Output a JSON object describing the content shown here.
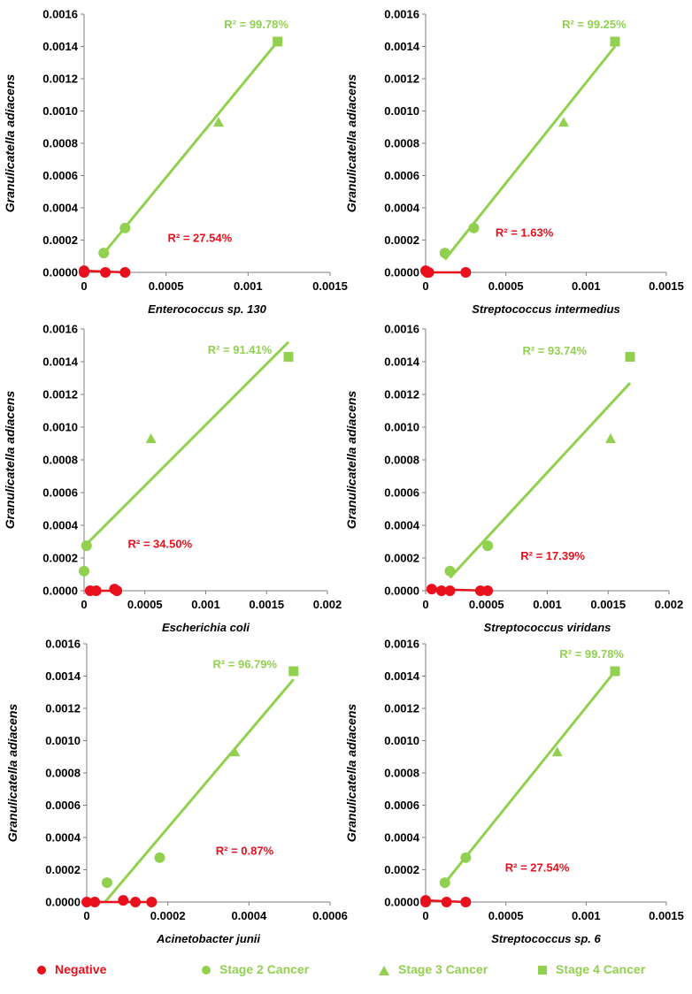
{
  "colors": {
    "negative": "#e8101c",
    "cancer": "#92d050"
  },
  "legend": [
    {
      "label": "Negative",
      "marker": "circle",
      "color": "#e8101c"
    },
    {
      "label": "Stage 2 Cancer",
      "marker": "circle",
      "color": "#92d050"
    },
    {
      "label": "Stage 3 Cancer",
      "marker": "triangle",
      "color": "#92d050"
    },
    {
      "label": "Stage 4 Cancer",
      "marker": "square",
      "color": "#92d050"
    }
  ],
  "chart_data": [
    {
      "type": "scatter",
      "xlabel": "Enterococcus sp. 130",
      "ylabel": "Granulicatella adiacens",
      "xlim": [
        0,
        0.0015
      ],
      "xticks": [
        0,
        0.0005,
        0.001,
        0.0015
      ],
      "xtick_labels": [
        "0",
        "0.0005",
        "0.001",
        "0.0015"
      ],
      "ylim": [
        0,
        0.0016
      ],
      "yticks": [
        0,
        0.0002,
        0.0004,
        0.0006,
        0.0008,
        0.001,
        0.0012,
        0.0014,
        0.0016
      ],
      "ytick_labels": [
        "0.0000",
        "0.0002",
        "0.0004",
        "0.0006",
        "0.0008",
        "0.0010",
        "0.0012",
        "0.0014",
        "0.0016"
      ],
      "negative": {
        "points": [
          [
            0,
            1e-05
          ],
          [
            0,
            0
          ],
          [
            0.00013,
            0
          ],
          [
            0.00025,
            0
          ]
        ],
        "trend": [
          [
            0,
            1e-05
          ],
          [
            0.00025,
            0
          ]
        ],
        "r2": "R² = 27.54%"
      },
      "cancer": {
        "stage2": [
          [
            0.00012,
            0.00012
          ],
          [
            0.00025,
            0.000275
          ]
        ],
        "stage3": [
          [
            0.00082,
            0.00093
          ]
        ],
        "stage4": [
          [
            0.00118,
            0.00143
          ]
        ],
        "trend": [
          [
            0.00012,
            0.000118
          ],
          [
            0.00118,
            0.00143
          ]
        ],
        "r2": "R² = 99.78%"
      }
    },
    {
      "type": "scatter",
      "xlabel": "Streptococcus intermedius",
      "ylabel": "Granulicatella adiacens",
      "xlim": [
        0,
        0.0015
      ],
      "xticks": [
        0,
        0.0005,
        0.001,
        0.0015
      ],
      "xtick_labels": [
        "0",
        "0.0005",
        "0.001",
        "0.0015"
      ],
      "ylim": [
        0,
        0.0016
      ],
      "yticks": [
        0,
        0.0002,
        0.0004,
        0.0006,
        0.0008,
        0.001,
        0.0012,
        0.0014,
        0.0016
      ],
      "ytick_labels": [
        "0.0000",
        "0.0002",
        "0.0004",
        "0.0006",
        "0.0008",
        "0.0010",
        "0.0012",
        "0.0014",
        "0.0016"
      ],
      "negative": {
        "points": [
          [
            0,
            1e-05
          ],
          [
            2e-05,
            0
          ],
          [
            1e-05,
            0
          ],
          [
            0.00025,
            0
          ]
        ],
        "trend": [
          [
            0,
            0
          ],
          [
            0.00025,
            0
          ]
        ],
        "r2": "R² = 1.63%"
      },
      "cancer": {
        "stage2": [
          [
            0.00012,
            0.00012
          ],
          [
            0.0003,
            0.000275
          ]
        ],
        "stage3": [
          [
            0.00086,
            0.00093
          ]
        ],
        "stage4": [
          [
            0.00118,
            0.00143
          ]
        ],
        "trend": [
          [
            0.00012,
            8e-05
          ],
          [
            0.00118,
            0.0014
          ]
        ],
        "r2": "R² = 99.25%"
      }
    },
    {
      "type": "scatter",
      "xlabel": "Escherichia coli",
      "ylabel": "Granulicatella adiacens",
      "xlim": [
        0,
        0.002
      ],
      "xticks": [
        0,
        0.0005,
        0.001,
        0.0015,
        0.002
      ],
      "xtick_labels": [
        "0",
        "0.0005",
        "0.001",
        "0.0015",
        "0.002"
      ],
      "ylim": [
        0,
        0.0016
      ],
      "yticks": [
        0,
        0.0002,
        0.0004,
        0.0006,
        0.0008,
        0.001,
        0.0012,
        0.0014,
        0.0016
      ],
      "ytick_labels": [
        "0.0000",
        "0.0002",
        "0.0004",
        "0.0006",
        "0.0008",
        "0.0010",
        "0.0012",
        "0.0014",
        "0.0016"
      ],
      "negative": {
        "points": [
          [
            5e-05,
            0
          ],
          [
            0.0001,
            0
          ],
          [
            0.00025,
            1e-05
          ],
          [
            0.00027,
            0
          ]
        ],
        "trend": [
          [
            5e-05,
            0
          ],
          [
            0.00027,
            0
          ]
        ],
        "r2": "R² = 34.50%"
      },
      "cancer": {
        "stage2": [
          [
            0,
            0.00012
          ],
          [
            2e-05,
            0.000275
          ]
        ],
        "stage3": [
          [
            0.00055,
            0.00093
          ]
        ],
        "stage4": [
          [
            0.00168,
            0.00143
          ]
        ],
        "trend": [
          [
            0,
            0.00027
          ],
          [
            0.00168,
            0.00152
          ]
        ],
        "r2": "R² = 91.41%"
      }
    },
    {
      "type": "scatter",
      "xlabel": "Streptococcus viridans",
      "ylabel": "Granulicatella adiacens",
      "xlim": [
        0,
        0.002
      ],
      "xticks": [
        0,
        0.0005,
        0.001,
        0.0015,
        0.002
      ],
      "xtick_labels": [
        "0",
        "0.0005",
        "0.001",
        "0.0015",
        "0.002"
      ],
      "ylim": [
        0,
        0.0016
      ],
      "yticks": [
        0,
        0.0002,
        0.0004,
        0.0006,
        0.0008,
        0.001,
        0.0012,
        0.0014,
        0.0016
      ],
      "ytick_labels": [
        "0.0000",
        "0.0002",
        "0.0004",
        "0.0006",
        "0.0008",
        "0.0010",
        "0.0012",
        "0.0014",
        "0.0016"
      ],
      "negative": {
        "points": [
          [
            5e-05,
            1e-05
          ],
          [
            0.00013,
            0
          ],
          [
            0.0002,
            0
          ],
          [
            0.00045,
            0
          ],
          [
            0.00051,
            0
          ]
        ],
        "trend": [
          [
            5e-05,
            1e-05
          ],
          [
            0.00051,
            0
          ]
        ],
        "r2": "R² = 17.39%"
      },
      "cancer": {
        "stage2": [
          [
            0.0002,
            0.00012
          ],
          [
            0.00051,
            0.000275
          ]
        ],
        "stage3": [
          [
            0.00152,
            0.00093
          ]
        ],
        "stage4": [
          [
            0.00168,
            0.00143
          ]
        ],
        "trend": [
          [
            0.0002,
            8e-05
          ],
          [
            0.00168,
            0.00127
          ]
        ],
        "r2": "R² = 93.74%"
      }
    },
    {
      "type": "scatter",
      "xlabel": "Acinetobacter junii",
      "ylabel": "Granulicatella adiacens",
      "xlim": [
        0,
        0.0006
      ],
      "xticks": [
        0,
        0.0002,
        0.0004,
        0.0006
      ],
      "xtick_labels": [
        "0",
        "0.0002",
        "0.0004",
        "0.0006"
      ],
      "ylim": [
        0,
        0.0016
      ],
      "yticks": [
        0,
        0.0002,
        0.0004,
        0.0006,
        0.0008,
        0.001,
        0.0012,
        0.0014,
        0.0016
      ],
      "ytick_labels": [
        "0.0000",
        "0.0002",
        "0.0004",
        "0.0006",
        "0.0008",
        "0.0010",
        "0.0012",
        "0.0014",
        "0.0016"
      ],
      "negative": {
        "points": [
          [
            0,
            0
          ],
          [
            2e-05,
            0
          ],
          [
            9e-05,
            1e-05
          ],
          [
            0.00012,
            0
          ],
          [
            0.00016,
            0
          ]
        ],
        "trend": [
          [
            0,
            0
          ],
          [
            0.00016,
            0
          ]
        ],
        "r2": "R² = 0.87%"
      },
      "cancer": {
        "stage2": [
          [
            5e-05,
            0.00012
          ],
          [
            0.00018,
            0.000275
          ]
        ],
        "stage3": [
          [
            0.000365,
            0.00093
          ]
        ],
        "stage4": [
          [
            0.00051,
            0.00143
          ]
        ],
        "trend": [
          [
            4.5e-05,
            0
          ],
          [
            0.00051,
            0.00138
          ]
        ],
        "r2": "R² = 96.79%"
      }
    },
    {
      "type": "scatter",
      "xlabel": "Streptococcus sp. 6",
      "ylabel": "Granulicatella adiacens",
      "xlim": [
        0,
        0.0015
      ],
      "xticks": [
        0,
        0.0005,
        0.001,
        0.0015
      ],
      "xtick_labels": [
        "0",
        "0.0005",
        "0.001",
        "0.0015"
      ],
      "ylim": [
        0,
        0.0016
      ],
      "yticks": [
        0,
        0.0002,
        0.0004,
        0.0006,
        0.0008,
        0.001,
        0.0012,
        0.0014,
        0.0016
      ],
      "ytick_labels": [
        "0.0000",
        "0.0002",
        "0.0004",
        "0.0006",
        "0.0008",
        "0.0010",
        "0.0012",
        "0.0014",
        "0.0016"
      ],
      "negative": {
        "points": [
          [
            0,
            1e-05
          ],
          [
            0,
            0
          ],
          [
            0.00013,
            0
          ],
          [
            0.00025,
            0
          ]
        ],
        "trend": [
          [
            0,
            1e-05
          ],
          [
            0.00025,
            0
          ]
        ],
        "r2": "R² = 27.54%"
      },
      "cancer": {
        "stage2": [
          [
            0.00012,
            0.00012
          ],
          [
            0.00025,
            0.000275
          ]
        ],
        "stage3": [
          [
            0.00082,
            0.00093
          ]
        ],
        "stage4": [
          [
            0.00118,
            0.00143
          ]
        ],
        "trend": [
          [
            0.00012,
            0.000118
          ],
          [
            0.00118,
            0.00143
          ]
        ],
        "r2": "R² = 99.78%"
      }
    }
  ]
}
